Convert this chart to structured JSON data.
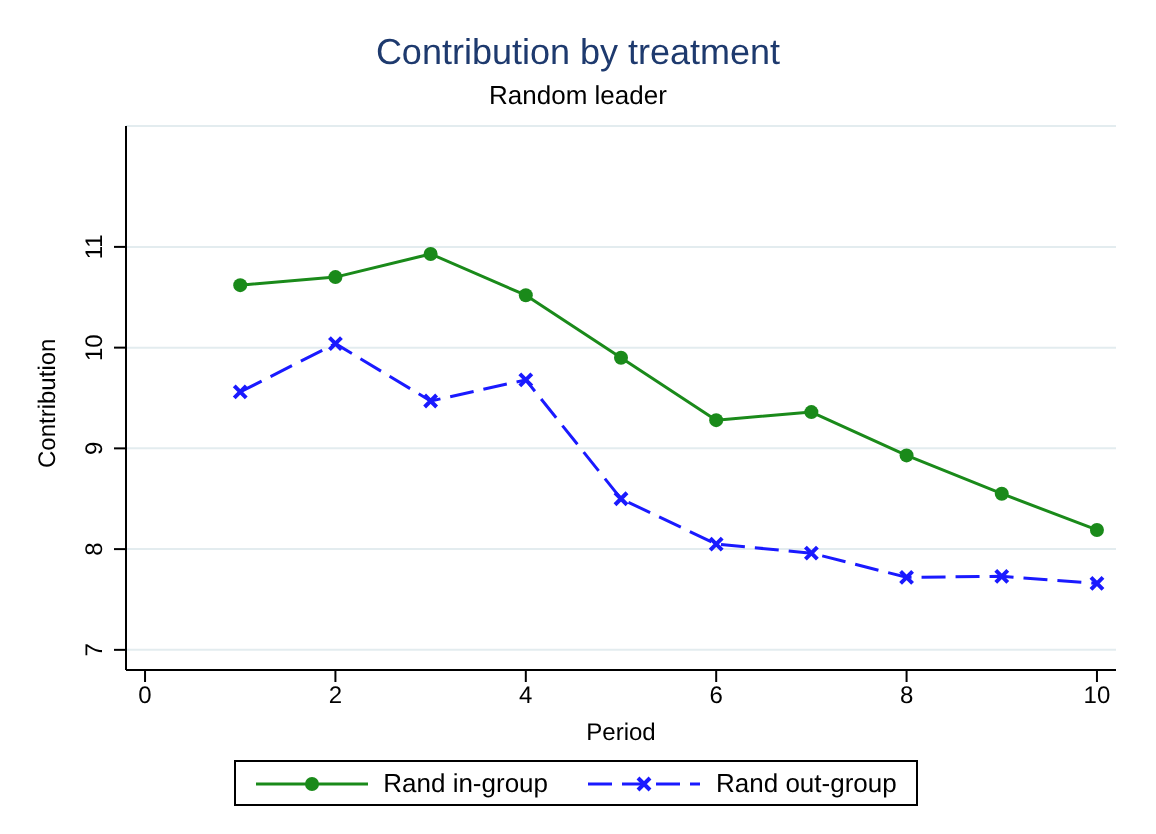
{
  "chart_data": {
    "type": "line",
    "title": "Contribution by treatment",
    "subtitle": "Random leader",
    "xlabel": "Period",
    "ylabel": "Contribution",
    "x": [
      1,
      2,
      3,
      4,
      5,
      6,
      7,
      8,
      9,
      10
    ],
    "series": [
      {
        "name": "Rand in-group",
        "color": "#1a8a1a",
        "marker": "circle",
        "line_style": "solid",
        "values": [
          10.62,
          10.7,
          10.93,
          10.52,
          9.9,
          9.28,
          9.36,
          8.93,
          8.55,
          8.19
        ]
      },
      {
        "name": "Rand out-group",
        "color": "#1a1aff",
        "marker": "cross",
        "line_style": "dashed",
        "values": [
          9.56,
          10.04,
          9.47,
          9.68,
          8.5,
          8.05,
          7.96,
          7.72,
          7.73,
          7.66
        ]
      }
    ],
    "xlim": [
      -0.2,
      10.2
    ],
    "xticks": [
      0,
      2,
      4,
      6,
      8,
      10
    ],
    "ylim": [
      6.8,
      12.2
    ],
    "yticks": [
      7,
      8,
      9,
      10,
      11
    ],
    "grid": "y",
    "legend": "bottom"
  }
}
